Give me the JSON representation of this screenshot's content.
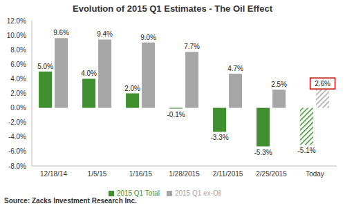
{
  "chart_data": {
    "type": "bar",
    "title": "Evolution of 2015 Q1 Estimates - The Oil Effect",
    "annotations": [
      "Source: Zacks Investment Research Inc."
    ],
    "categories": [
      "12/18/14",
      "1/5/15",
      "1/16/15",
      "1/28/2015",
      "2/11/2015",
      "2/25/2015",
      "Today"
    ],
    "series": [
      {
        "name": "2015 Q1 Total",
        "color": "#3f8f2f",
        "values": [
          5.0,
          4.0,
          2.0,
          -0.1,
          -3.3,
          -5.3,
          -5.1
        ],
        "value_labels": [
          "5.0%",
          "4.0%",
          "2.0%",
          "-0.1%",
          "-3.3%",
          "-5.3%",
          "-5.1%"
        ]
      },
      {
        "name": "2015 Q1 ex-Oil",
        "color": "#a6a6a6",
        "values": [
          9.6,
          9.4,
          9.0,
          7.7,
          4.7,
          2.5,
          2.6
        ],
        "value_labels": [
          "9.6%",
          "9.4%",
          "9.0%",
          "7.7%",
          "4.7%",
          "2.5%",
          "2.6%"
        ]
      }
    ],
    "ylim": [
      -8,
      12
    ],
    "yticks": [
      {
        "value": -8,
        "label": "-8.0%"
      },
      {
        "value": -6,
        "label": "-6.0%"
      },
      {
        "value": -4,
        "label": "-4.0%"
      },
      {
        "value": -2,
        "label": "-2.0%"
      },
      {
        "value": 0,
        "label": "0.0%"
      },
      {
        "value": 2,
        "label": "2.0%"
      },
      {
        "value": 4,
        "label": "4.0%"
      },
      {
        "value": 6,
        "label": "6.0%"
      },
      {
        "value": 8,
        "label": "8.0%"
      },
      {
        "value": 10,
        "label": "10.0%"
      },
      {
        "value": 12,
        "label": "12.0%"
      }
    ],
    "grid": false,
    "legend": "bottom",
    "data_labels": true
  }
}
